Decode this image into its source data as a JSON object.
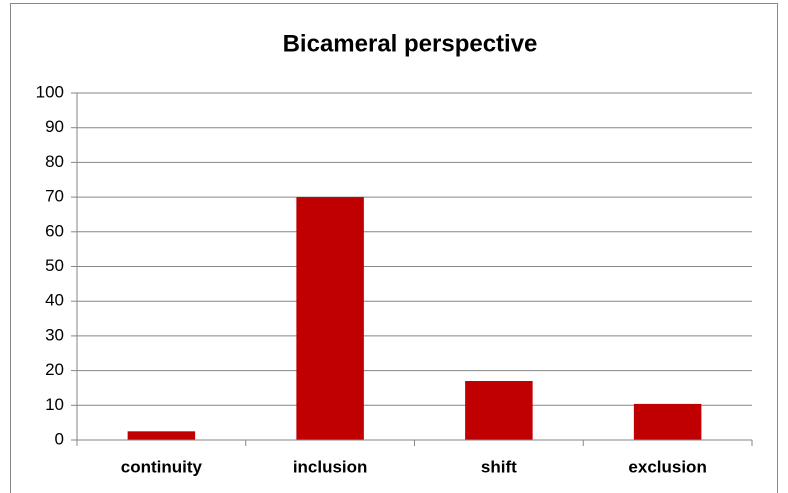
{
  "chart_data": {
    "type": "bar",
    "title": "Bicameral perspective",
    "categories": [
      "continuity",
      "inclusion",
      "shift",
      "exclusion"
    ],
    "values": [
      2.5,
      70,
      17,
      10.4
    ],
    "color": "#c00000",
    "ylim": [
      0,
      100
    ],
    "yticks": [
      0,
      10,
      20,
      30,
      40,
      50,
      60,
      70,
      80,
      90,
      100
    ],
    "grid": true
  }
}
